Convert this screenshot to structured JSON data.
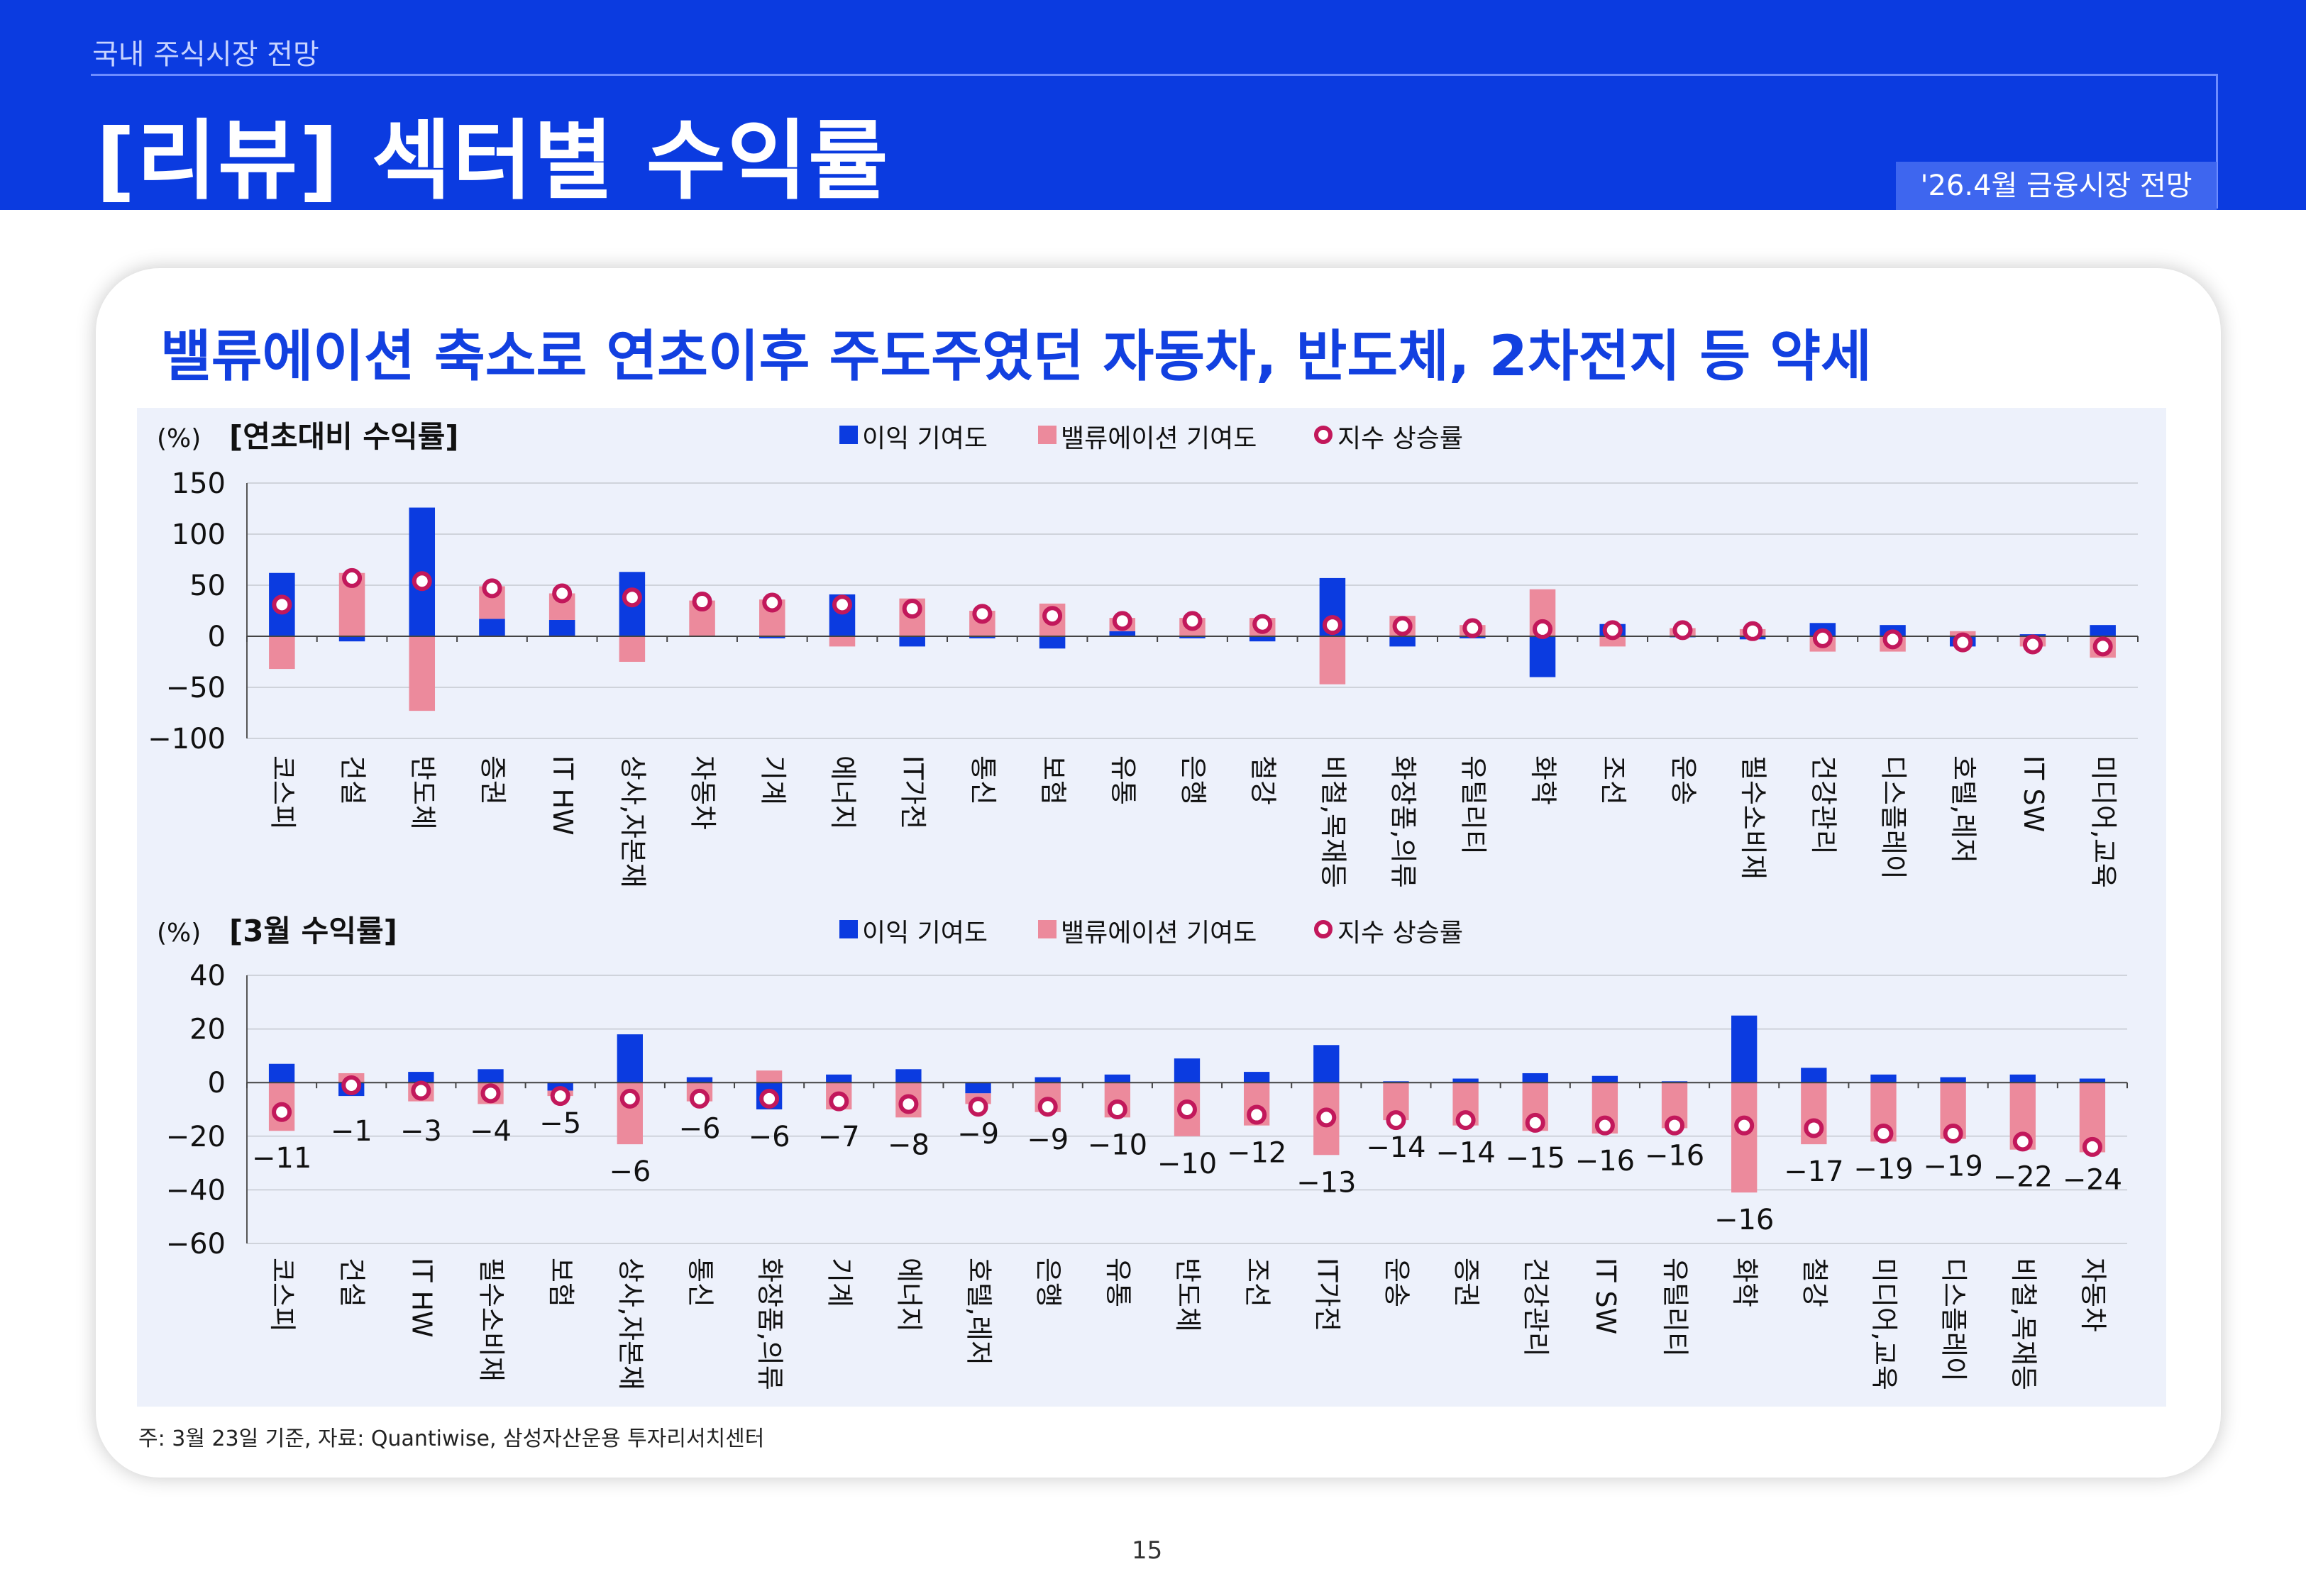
{
  "header": {
    "breadcrumb": "국내 주식시장 전망",
    "title": "[리뷰] 섹터별 수익률",
    "edition": "'26.4월 금융시장 전망"
  },
  "headline": "밸류에이션 축소로 연초이후 주도주였던 자동차, 반도체, 2차전지 등 약세",
  "colors": {
    "earnings": "#0b3be0",
    "valuation": "#ec8a9c",
    "index": "#c2185b",
    "header_bg": "#0b3be0",
    "panel_bg": "#edf1fb"
  },
  "chart_data": [
    {
      "type": "bar",
      "title": "[연초대비 수익률]",
      "unit": "(%)",
      "ylim": [
        -100,
        150
      ],
      "yticks": [
        150,
        100,
        50,
        0,
        -50,
        -100
      ],
      "legend": [
        "이익 기여도",
        "밸류에이션 기여도",
        "지수 상승률"
      ],
      "categories": [
        "코스피",
        "건설",
        "반도체",
        "증권",
        "IT HW",
        "상사,자본재",
        "자동차",
        "기계",
        "에너지",
        "IT가전",
        "통신",
        "보험",
        "유통",
        "은행",
        "철강",
        "비철,목재등",
        "화장품,의류",
        "유틸리티",
        "화학",
        "조선",
        "운송",
        "필수소비재",
        "건강관리",
        "디스플레이",
        "호텔,레저",
        "IT SW",
        "미디어,교육"
      ],
      "series": [
        {
          "name": "이익 기여도",
          "values": [
            62,
            -5,
            126,
            17,
            16,
            63,
            0,
            -2,
            41,
            -10,
            -2,
            -12,
            5,
            -2,
            -5,
            57,
            -10,
            -2,
            -40,
            12,
            -1,
            -3,
            13,
            11,
            -10,
            2,
            11
          ]
        },
        {
          "name": "밸류에이션 기여도",
          "values": [
            -32,
            62,
            -73,
            32,
            26,
            -25,
            35,
            36,
            -10,
            37,
            25,
            32,
            13,
            18,
            18,
            -47,
            20,
            11,
            46,
            -10,
            8,
            7,
            -15,
            -15,
            5,
            -10,
            -21
          ]
        },
        {
          "name": "지수 상승률",
          "values": [
            31,
            57,
            54,
            47,
            42,
            38,
            34,
            33,
            31,
            27,
            22,
            20,
            15,
            15,
            12,
            11,
            10,
            8,
            7,
            6,
            6,
            5,
            -2,
            -3,
            -6,
            -8,
            -10
          ]
        }
      ]
    },
    {
      "type": "bar",
      "title": "[3월 수익률]",
      "unit": "(%)",
      "ylim": [
        -60,
        40
      ],
      "yticks": [
        40,
        20,
        0,
        -20,
        -40,
        -60
      ],
      "legend": [
        "이익 기여도",
        "밸류에이션 기여도",
        "지수 상승률"
      ],
      "categories": [
        "코스피",
        "건설",
        "IT HW",
        "필수소비재",
        "보험",
        "상사,자본재",
        "통신",
        "화장품,의류",
        "기계",
        "에너지",
        "호텔,레저",
        "은행",
        "유통",
        "반도체",
        "조선",
        "IT가전",
        "운송",
        "증권",
        "건강관리",
        "IT SW",
        "유틸리티",
        "화학",
        "철강",
        "미디어,교육",
        "디스플레이",
        "비철,목재등",
        "자동차"
      ],
      "data_labels": [
        "-11",
        "-1",
        "-3",
        "-4",
        "-5",
        "-6",
        "-6",
        "-6",
        "-7",
        "-8",
        "-9",
        "-9",
        "-10",
        "-10",
        "-12",
        "-13",
        "-14",
        "-14",
        "-15",
        "-16",
        "-16",
        "-16",
        "-17",
        "-19",
        "-19",
        "-22",
        "-24"
      ],
      "series": [
        {
          "name": "이익 기여도",
          "values": [
            7,
            -5,
            4,
            5,
            -3,
            18,
            2,
            -10,
            3,
            5,
            -4,
            2,
            3,
            9,
            4,
            14,
            0.5,
            1.5,
            3.5,
            2.5,
            0.5,
            25,
            5.5,
            3,
            2,
            3,
            1.5
          ]
        },
        {
          "name": "밸류에이션 기여도",
          "values": [
            -18,
            3.5,
            -7,
            -8,
            -2,
            -23,
            -7,
            4.5,
            -10,
            -13,
            -4,
            -11,
            -13,
            -20,
            -16,
            -27,
            -14,
            -16,
            -18,
            -19,
            -17,
            -41,
            -23,
            -22,
            -21,
            -25,
            -26
          ]
        },
        {
          "name": "지수 상승률",
          "values": [
            -11,
            -1,
            -3,
            -4,
            -5,
            -6,
            -6,
            -6,
            -7,
            -8,
            -9,
            -9,
            -10,
            -10,
            -12,
            -13,
            -14,
            -14,
            -15,
            -16,
            -16,
            -16,
            -17,
            -19,
            -19,
            -22,
            -24
          ]
        }
      ]
    }
  ],
  "footer": {
    "source": "주: 3월 23일 기준, 자료: Quantiwise, 삼성자산운용 투자리서치센터",
    "page": "15"
  }
}
